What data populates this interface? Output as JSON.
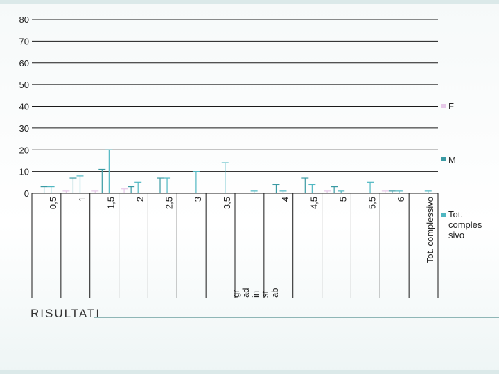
{
  "slide": {
    "title": "RISULTATI"
  },
  "colors": {
    "F": "#e6c8e8",
    "M": "#3a9aa3",
    "total": "#4fb7c2",
    "grid": "#1a1a1a"
  },
  "chart_data": {
    "type": "bar",
    "title": "",
    "xlabel": "",
    "ylabel": "",
    "ylim": [
      0,
      80
    ],
    "yticks": [
      "0",
      "10",
      "20",
      "30",
      "40",
      "50",
      "60",
      "70",
      "80"
    ],
    "categories": [
      "0,5",
      "1",
      "1,5",
      "2",
      "2,5",
      "3",
      "3,5",
      "gr ad in st ab",
      "4",
      "4,5",
      "5",
      "5,5",
      "6",
      "Tot. complessivo"
    ],
    "legend_position": "right",
    "series": [
      {
        "name": "F",
        "values": [
          0,
          1,
          1,
          2,
          0,
          0,
          0,
          0,
          0,
          0,
          1,
          0,
          1,
          0
        ]
      },
      {
        "name": "M",
        "values": [
          3,
          7,
          11,
          3,
          7,
          0,
          0,
          0,
          4,
          7,
          3,
          0,
          1,
          0
        ]
      },
      {
        "name": "Tot. complessivo",
        "values": [
          3,
          8,
          20,
          5,
          7,
          10,
          14,
          1,
          1,
          4,
          1,
          5,
          1,
          1
        ]
      }
    ]
  }
}
